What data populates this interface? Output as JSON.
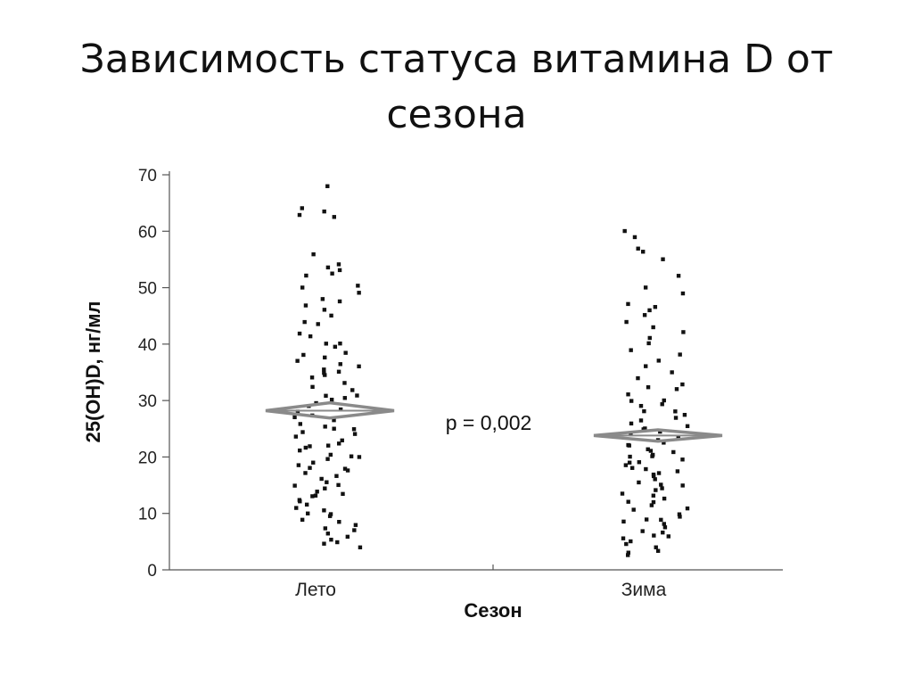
{
  "slide": {
    "title_line1": "Зависимость статуса витамина D от",
    "title_line2": "сезона"
  },
  "chart_data": {
    "type": "scatter",
    "title": "",
    "xlabel": "Сезон",
    "ylabel": "25(OH)D, нг/мл",
    "ylim": [
      0,
      70
    ],
    "yticks": [
      0,
      10,
      20,
      30,
      40,
      50,
      60,
      70
    ],
    "categories": [
      "Лето",
      "Зима"
    ],
    "annotation": "p = 0,002",
    "point_color": "#111111",
    "mean_marker_color": "#8a8a8a",
    "series": [
      {
        "category": "Лето",
        "mean": 28.2,
        "ci": [
          26.9,
          29.6
        ],
        "points": [
          68,
          64,
          63.5,
          63,
          62.5,
          56,
          54,
          53.5,
          53,
          52.5,
          52,
          50.5,
          50,
          49,
          48,
          47.5,
          47,
          46,
          45,
          44,
          43.5,
          42,
          41.5,
          40,
          39.5,
          38.5,
          38,
          37.5,
          37,
          36.5,
          36,
          35.5,
          35,
          34.5,
          34,
          33,
          32.5,
          32,
          31,
          30.5,
          30,
          29.5,
          29,
          28.5,
          27.5,
          27,
          26.5,
          26,
          25.5,
          25,
          24.5,
          24,
          23.5,
          23,
          22.5,
          22,
          21.5,
          21,
          20.5,
          20,
          19.5,
          19,
          18.5,
          18,
          17.5,
          17,
          16.5,
          16,
          15.5,
          15,
          14.5,
          14,
          13.5,
          13,
          12.5,
          12,
          11.5,
          11,
          10.5,
          10,
          9.5,
          9,
          8.5,
          8,
          7.5,
          7,
          6.5,
          6,
          5.5,
          5,
          4.5,
          4,
          15,
          18,
          22,
          25,
          28,
          31,
          35,
          40,
          10,
          13,
          20
        ]
      },
      {
        "category": "Зима",
        "mean": 23.8,
        "ci": [
          22.8,
          24.8
        ],
        "points": [
          60,
          59,
          57,
          56.5,
          55,
          52,
          50,
          49,
          47,
          46.5,
          46,
          45,
          44,
          43,
          42,
          41,
          40,
          39,
          38,
          37,
          36,
          35,
          34,
          33,
          32.5,
          32,
          31,
          30,
          29.5,
          29,
          28,
          27.5,
          27,
          26.5,
          26,
          25.5,
          25,
          24.5,
          24,
          23.5,
          23,
          22.5,
          22,
          21.5,
          21,
          20.5,
          20,
          19.5,
          19,
          18.5,
          18,
          17.5,
          17,
          16.5,
          16,
          15.5,
          15,
          14.5,
          14,
          13.5,
          13,
          12.5,
          12,
          11.5,
          11,
          10.5,
          10,
          9.5,
          9,
          8.5,
          8,
          7.5,
          7,
          6.5,
          6,
          5.5,
          5,
          4.5,
          4,
          3.5,
          3,
          2.5,
          18,
          20,
          22,
          25,
          12,
          15,
          9,
          6,
          28,
          30,
          17,
          19,
          21
        ]
      }
    ]
  }
}
